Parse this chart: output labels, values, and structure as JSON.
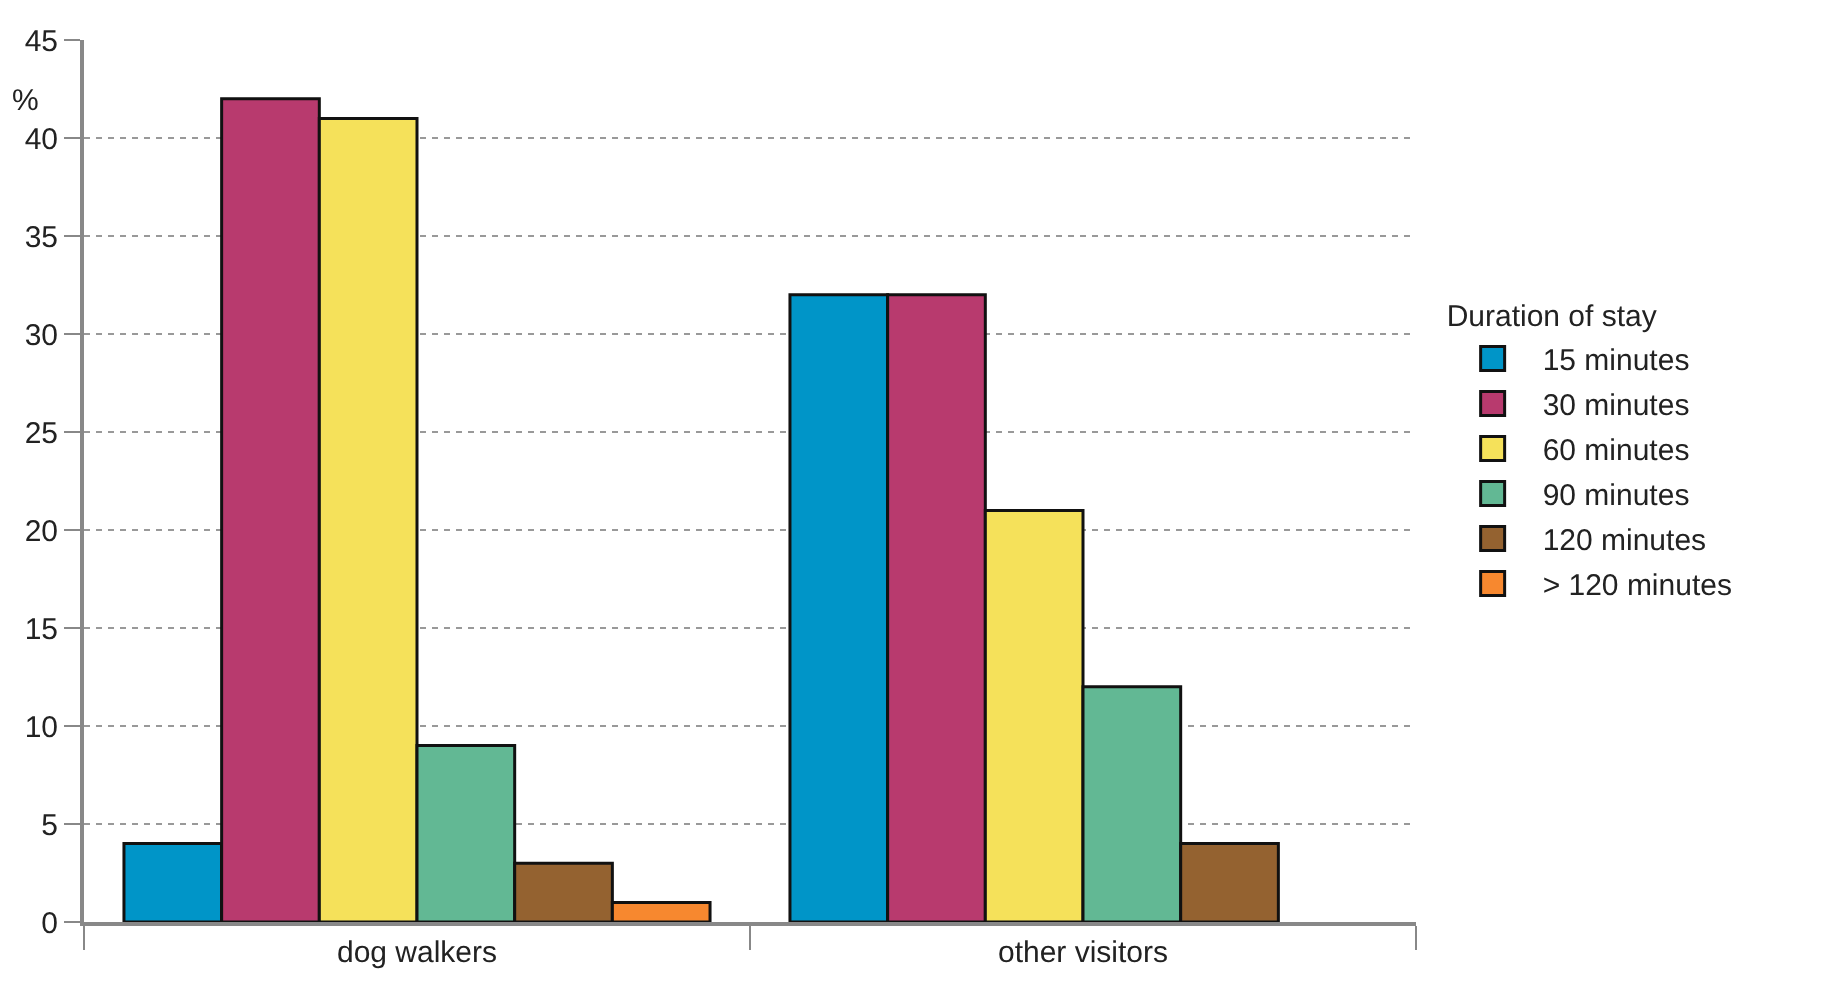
{
  "chart_data": {
    "type": "bar",
    "categories": [
      "dog walkers",
      "other visitors"
    ],
    "ylabel": "%",
    "legend_title": "Duration of stay",
    "legend": "right",
    "grid": "y",
    "ylim": [
      0,
      45
    ],
    "yticks": [
      0,
      5,
      10,
      15,
      20,
      25,
      30,
      35,
      40,
      45
    ],
    "series": [
      {
        "name": "15 minutes",
        "color": "#0095c8",
        "values": [
          4,
          32
        ]
      },
      {
        "name": "30 minutes",
        "color": "#b83a6e",
        "values": [
          42,
          32
        ]
      },
      {
        "name": "60 minutes",
        "color": "#f5e15a",
        "values": [
          41,
          21
        ]
      },
      {
        "name": "90 minutes",
        "color": "#62b894",
        "values": [
          9,
          12
        ]
      },
      {
        "name": "120 minutes",
        "color": "#946230",
        "values": [
          3,
          4
        ]
      },
      {
        "name": "> 120 minutes",
        "color": "#f7882f",
        "values": [
          1,
          null
        ]
      }
    ]
  }
}
